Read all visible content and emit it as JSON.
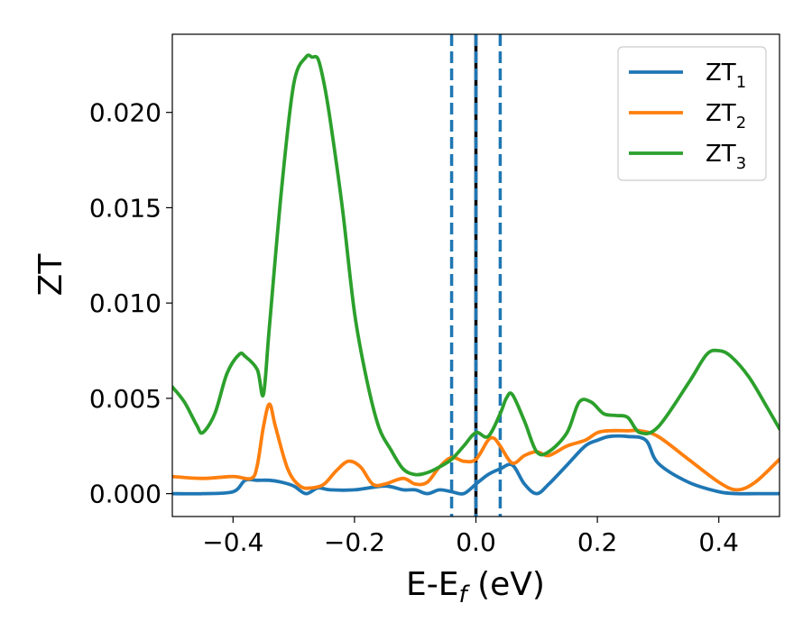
{
  "chart_data": {
    "type": "line",
    "xlabel": "E-E",
    "xlabel_sub": "f",
    "xlabel_unit": " (eV)",
    "ylabel": "ZT",
    "xlim": [
      -0.5,
      0.5
    ],
    "ylim": [
      -0.0012,
      0.0241
    ],
    "xticks": [
      -0.4,
      -0.2,
      0.0,
      0.2,
      0.4
    ],
    "xtick_labels": [
      "−0.4",
      "−0.2",
      "0.0",
      "0.2",
      "0.4"
    ],
    "yticks": [
      0.0,
      0.005,
      0.01,
      0.015,
      0.02
    ],
    "ytick_labels": [
      "0.000",
      "0.005",
      "0.010",
      "0.015",
      "0.020"
    ],
    "grid": false,
    "legend_position": "top-right",
    "vlines": [
      {
        "x": -0.04,
        "style": "dashed",
        "color": "#1f77b4"
      },
      {
        "x": 0.0,
        "style": "solid",
        "color": "#000000"
      },
      {
        "x": 0.0,
        "style": "dashed",
        "color": "#1f77b4"
      },
      {
        "x": 0.04,
        "style": "dashed",
        "color": "#1f77b4"
      }
    ],
    "series": [
      {
        "name": "ZT",
        "name_sub": "1",
        "color": "#1f77b4",
        "x": [
          -0.5,
          -0.45,
          -0.4,
          -0.38,
          -0.36,
          -0.34,
          -0.32,
          -0.3,
          -0.28,
          -0.26,
          -0.24,
          -0.2,
          -0.15,
          -0.12,
          -0.1,
          -0.08,
          -0.06,
          -0.04,
          -0.02,
          0.0,
          0.02,
          0.04,
          0.06,
          0.08,
          0.1,
          0.12,
          0.15,
          0.18,
          0.2,
          0.22,
          0.25,
          0.28,
          0.3,
          0.35,
          0.4,
          0.43,
          0.46,
          0.5
        ],
        "y": [
          0.0,
          0.0,
          0.0001,
          0.0007,
          0.0007,
          0.0007,
          0.0006,
          0.0004,
          0.0,
          0.0003,
          0.0002,
          0.0002,
          0.0004,
          0.0002,
          0.0002,
          0.0,
          0.0002,
          0.0001,
          0.0,
          0.0005,
          0.001,
          0.0013,
          0.0015,
          0.0005,
          0.0,
          0.0005,
          0.0015,
          0.0025,
          0.0028,
          0.003,
          0.003,
          0.0028,
          0.0016,
          0.0006,
          0.0001,
          0.0,
          0.0,
          0.0
        ]
      },
      {
        "name": "ZT",
        "name_sub": "2",
        "color": "#ff7f0e",
        "x": [
          -0.5,
          -0.45,
          -0.4,
          -0.37,
          -0.36,
          -0.35,
          -0.34,
          -0.33,
          -0.31,
          -0.29,
          -0.27,
          -0.25,
          -0.23,
          -0.21,
          -0.19,
          -0.17,
          -0.15,
          -0.12,
          -0.1,
          -0.08,
          -0.06,
          -0.04,
          -0.02,
          0.0,
          0.02,
          0.03,
          0.04,
          0.06,
          0.08,
          0.1,
          0.12,
          0.15,
          0.18,
          0.2,
          0.22,
          0.25,
          0.27,
          0.3,
          0.35,
          0.4,
          0.43,
          0.46,
          0.5
        ],
        "y": [
          0.0009,
          0.0008,
          0.0009,
          0.0008,
          0.0015,
          0.0035,
          0.0047,
          0.0035,
          0.0013,
          0.0004,
          0.0003,
          0.0005,
          0.0012,
          0.0017,
          0.0014,
          0.0005,
          0.0005,
          0.0008,
          0.0005,
          0.0006,
          0.0014,
          0.0019,
          0.0017,
          0.0018,
          0.0028,
          0.0029,
          0.0025,
          0.0016,
          0.002,
          0.0022,
          0.002,
          0.0025,
          0.0028,
          0.0032,
          0.0033,
          0.0033,
          0.0033,
          0.003,
          0.0018,
          0.0006,
          0.0002,
          0.0006,
          0.0018
        ]
      },
      {
        "name": "ZT",
        "name_sub": "3",
        "color": "#2ca02c",
        "x": [
          -0.5,
          -0.48,
          -0.46,
          -0.45,
          -0.43,
          -0.41,
          -0.39,
          -0.38,
          -0.36,
          -0.35,
          -0.34,
          -0.32,
          -0.3,
          -0.28,
          -0.27,
          -0.26,
          -0.25,
          -0.24,
          -0.22,
          -0.2,
          -0.18,
          -0.16,
          -0.14,
          -0.12,
          -0.1,
          -0.08,
          -0.06,
          -0.04,
          -0.02,
          0.0,
          0.02,
          0.04,
          0.05,
          0.06,
          0.08,
          0.1,
          0.12,
          0.15,
          0.17,
          0.19,
          0.21,
          0.23,
          0.25,
          0.27,
          0.3,
          0.35,
          0.38,
          0.4,
          0.42,
          0.45,
          0.48,
          0.5
        ],
        "y": [
          0.0056,
          0.0048,
          0.0036,
          0.0032,
          0.0042,
          0.0063,
          0.0073,
          0.0072,
          0.0065,
          0.0052,
          0.0088,
          0.016,
          0.0215,
          0.0229,
          0.0229,
          0.0228,
          0.0215,
          0.0196,
          0.015,
          0.0095,
          0.006,
          0.0035,
          0.0023,
          0.0013,
          0.001,
          0.0011,
          0.0014,
          0.0018,
          0.0025,
          0.0032,
          0.003,
          0.0042,
          0.005,
          0.0052,
          0.0038,
          0.0022,
          0.0022,
          0.0032,
          0.0048,
          0.0048,
          0.0042,
          0.0041,
          0.004,
          0.0032,
          0.0035,
          0.0058,
          0.0073,
          0.0075,
          0.0072,
          0.0061,
          0.0045,
          0.0034
        ]
      }
    ]
  }
}
